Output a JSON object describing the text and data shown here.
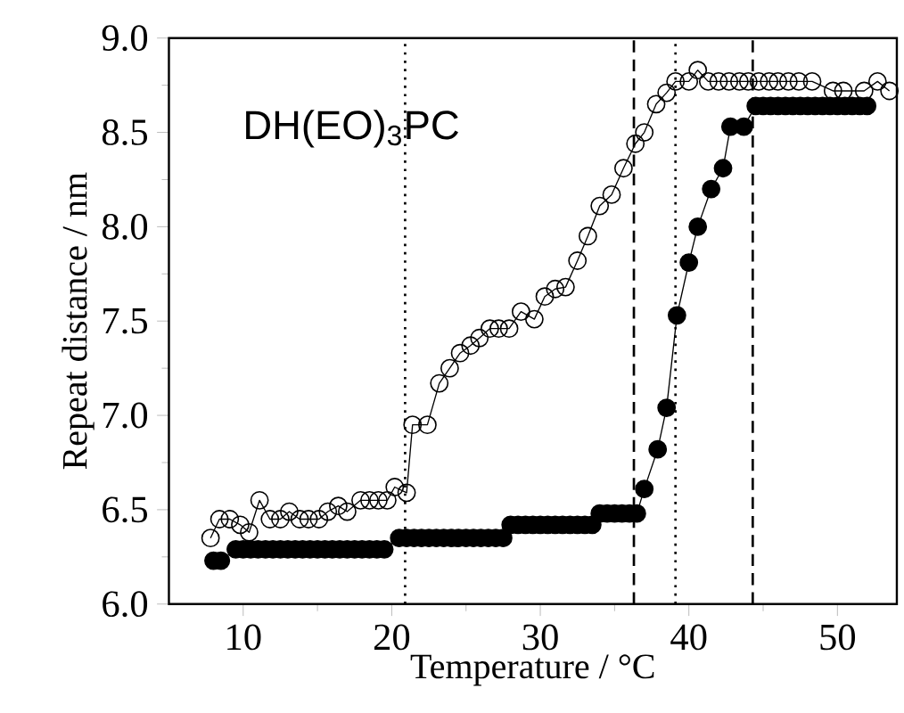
{
  "chart_data": {
    "type": "line",
    "xlabel": "Temperature / °C",
    "ylabel": "Repeat distance / nm",
    "annotations": [
      "DH(EO)$_{3}$PC"
    ],
    "xlim": [
      5,
      54
    ],
    "ylim": [
      6.0,
      9.0
    ],
    "xticks": [
      10,
      20,
      30,
      40,
      50
    ],
    "yticks": [
      {
        "value": 6.0,
        "label": "6.0"
      },
      {
        "value": 6.5,
        "label": "6.5"
      },
      {
        "value": 7.0,
        "label": "7.0"
      },
      {
        "value": 7.5,
        "label": "7.5"
      },
      {
        "value": 8.0,
        "label": "8.0"
      },
      {
        "value": 8.5,
        "label": "8.5"
      },
      {
        "value": 9.0,
        "label": "9.0"
      }
    ],
    "line_style": "solid",
    "series": [
      {
        "color": "#000000",
        "marker": "circle",
        "x": [
          8.0,
          8.5,
          9.5,
          10.0,
          10.5,
          11.0,
          11.5,
          12.0,
          12.5,
          13.0,
          13.5,
          14.0,
          14.5,
          15.0,
          15.5,
          16.0,
          16.5,
          17.0,
          17.5,
          18.0,
          18.5,
          19.0,
          19.5,
          20.5,
          21.0,
          21.5,
          22.0,
          22.5,
          23.0,
          23.5,
          24.0,
          24.5,
          25.0,
          25.5,
          26.0,
          26.5,
          27.0,
          27.5,
          28.0,
          28.5,
          29.0,
          29.5,
          30.0,
          30.5,
          31.0,
          31.5,
          32.0,
          32.5,
          33.0,
          33.5,
          34.0,
          34.5,
          35.0,
          35.5,
          36.0,
          36.5,
          37.0,
          37.9,
          38.5,
          39.2,
          40.0,
          40.6,
          41.5,
          42.3,
          42.8,
          43.7,
          44.5,
          45.0,
          45.5,
          46.0,
          46.5,
          47.0,
          47.5,
          48.0,
          48.5,
          49.0,
          49.5,
          50.0,
          50.5,
          51.0,
          51.5,
          52.0
        ],
        "values": [
          6.23,
          6.23,
          6.29,
          6.29,
          6.29,
          6.29,
          6.29,
          6.29,
          6.29,
          6.29,
          6.29,
          6.29,
          6.29,
          6.29,
          6.29,
          6.29,
          6.29,
          6.29,
          6.29,
          6.29,
          6.29,
          6.29,
          6.29,
          6.35,
          6.35,
          6.35,
          6.35,
          6.35,
          6.35,
          6.35,
          6.35,
          6.35,
          6.35,
          6.35,
          6.35,
          6.35,
          6.35,
          6.35,
          6.42,
          6.42,
          6.42,
          6.42,
          6.42,
          6.42,
          6.42,
          6.42,
          6.42,
          6.42,
          6.42,
          6.42,
          6.48,
          6.48,
          6.48,
          6.48,
          6.48,
          6.48,
          6.61,
          6.82,
          7.04,
          7.53,
          7.81,
          8.0,
          8.2,
          8.31,
          8.53,
          8.53,
          8.64,
          8.64,
          8.64,
          8.64,
          8.64,
          8.64,
          8.64,
          8.64,
          8.64,
          8.64,
          8.64,
          8.64,
          8.64,
          8.64,
          8.64,
          8.64
        ]
      },
      {
        "color": "#000000",
        "marker": "open circle",
        "x": [
          7.8,
          8.4,
          9.1,
          9.8,
          10.4,
          11.1,
          11.8,
          12.5,
          13.1,
          13.8,
          14.4,
          15.1,
          15.7,
          16.4,
          17.0,
          17.9,
          18.5,
          19.1,
          19.7,
          20.2,
          21.0,
          21.4,
          22.4,
          23.2,
          23.9,
          24.6,
          25.3,
          25.9,
          26.6,
          27.2,
          27.9,
          28.7,
          29.6,
          30.3,
          31.0,
          31.7,
          32.5,
          33.2,
          34.0,
          34.8,
          35.6,
          36.4,
          37.0,
          37.8,
          38.5,
          39.1,
          40.0,
          40.6,
          41.3,
          42.0,
          42.7,
          43.4,
          44.0,
          44.7,
          45.4,
          46.0,
          46.7,
          47.4,
          48.3,
          49.7,
          50.4,
          51.8,
          52.7,
          53.5
        ],
        "values": [
          6.35,
          6.45,
          6.45,
          6.42,
          6.38,
          6.55,
          6.45,
          6.45,
          6.49,
          6.45,
          6.45,
          6.45,
          6.49,
          6.52,
          6.49,
          6.55,
          6.55,
          6.55,
          6.55,
          6.62,
          6.59,
          6.95,
          6.95,
          7.17,
          7.25,
          7.33,
          7.37,
          7.41,
          7.46,
          7.46,
          7.46,
          7.55,
          7.51,
          7.63,
          7.67,
          7.68,
          7.82,
          7.95,
          8.11,
          8.17,
          8.31,
          8.44,
          8.5,
          8.65,
          8.71,
          8.77,
          8.77,
          8.83,
          8.77,
          8.77,
          8.77,
          8.77,
          8.77,
          8.77,
          8.77,
          8.77,
          8.77,
          8.77,
          8.77,
          8.72,
          8.72,
          8.72,
          8.77,
          8.72
        ]
      }
    ],
    "ref_lines": [
      {
        "axis": "x",
        "value": 20.9,
        "color": "#000000",
        "line_style": "dotted"
      },
      {
        "axis": "x",
        "value": 36.3,
        "color": "#000000",
        "line_style": "dashed"
      },
      {
        "axis": "x",
        "value": 39.1,
        "color": "#000000",
        "line_style": "dotted"
      },
      {
        "axis": "x",
        "value": 44.3,
        "color": "#000000",
        "line_style": "dashed"
      }
    ]
  }
}
